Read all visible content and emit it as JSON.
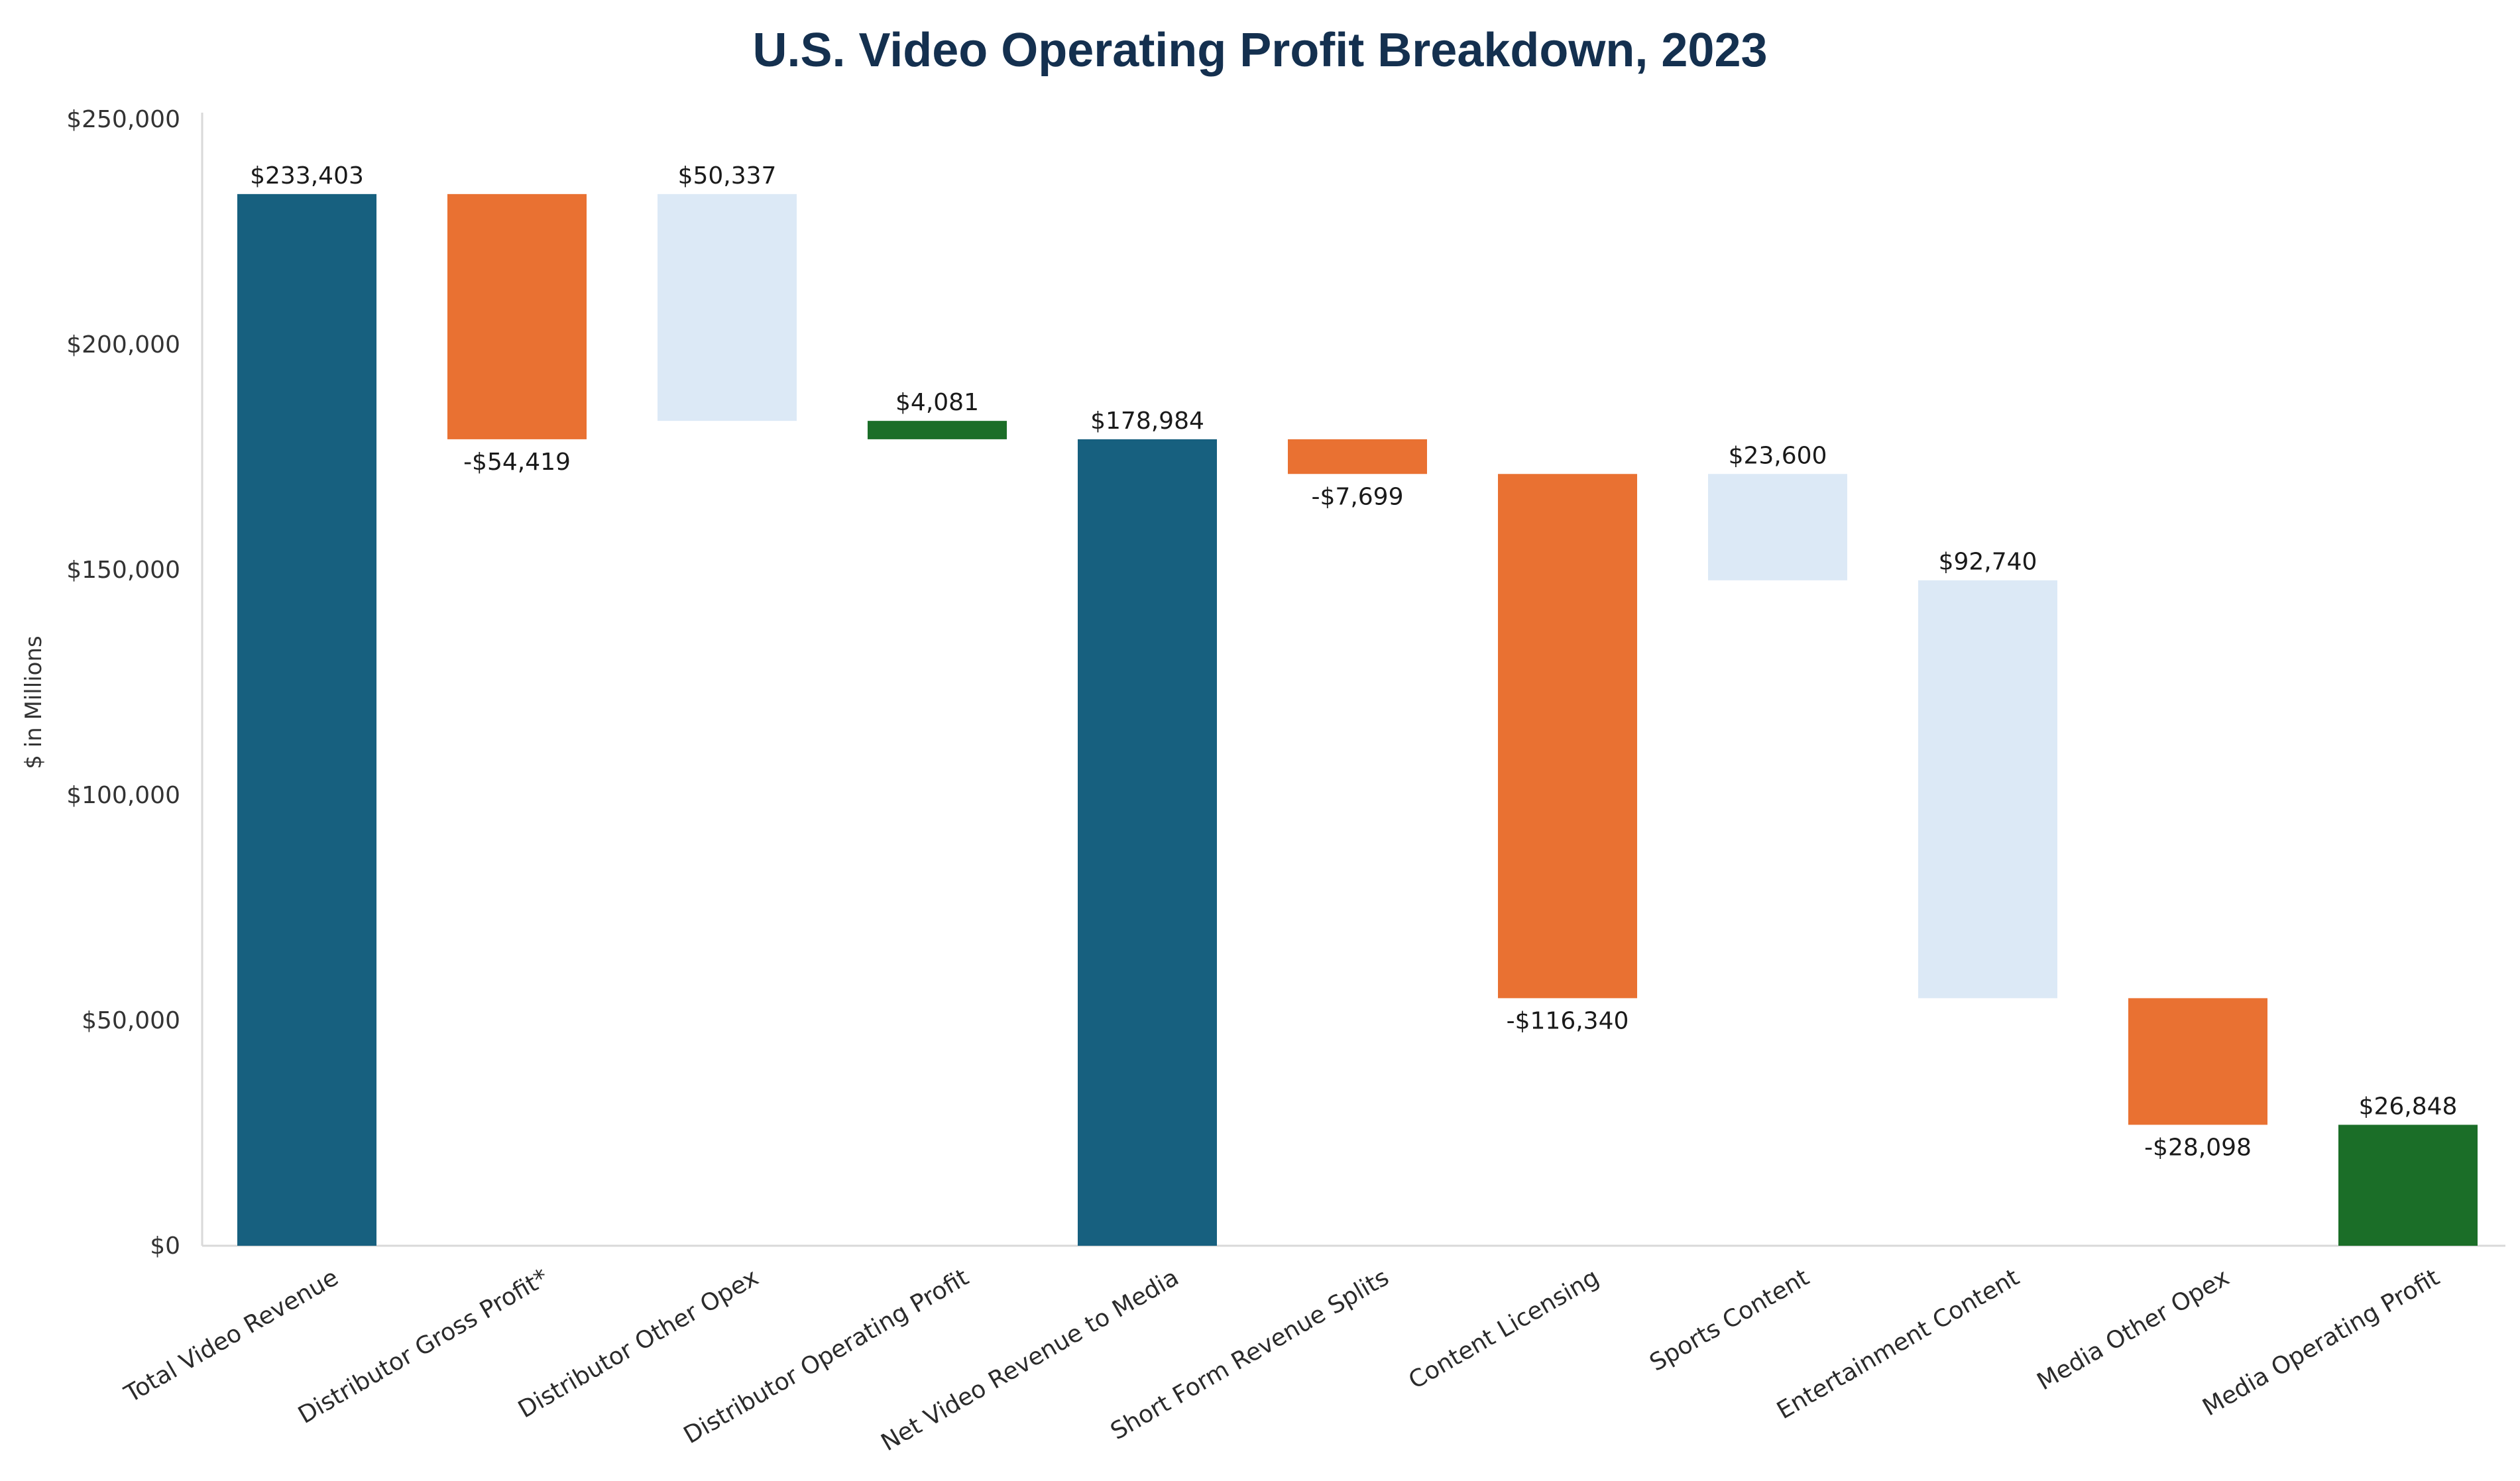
{
  "chart_data": {
    "type": "bar",
    "subtype": "waterfall",
    "title": "U.S.  Video Operating Profit Breakdown, 2023",
    "ylabel": "$ in Millions",
    "ylim": [
      0,
      250000
    ],
    "yticks": [
      0,
      50000,
      100000,
      150000,
      200000,
      250000
    ],
    "ytick_labels": [
      "$0",
      "$50,000",
      "$100,000",
      "$150,000",
      "$200,000",
      "$250,000"
    ],
    "grid": false,
    "legend": "none",
    "bars": [
      {
        "category": "Total Video Revenue",
        "kind": "total",
        "start": 0,
        "end": 233403,
        "label": "$233,403",
        "label_pos": "top",
        "color": "#17607f"
      },
      {
        "category": "Distributor Gross Profit*",
        "kind": "decrease",
        "start": 233403,
        "end": 178984,
        "label": "-$54,419",
        "label_pos": "bottom",
        "color": "#e97132"
      },
      {
        "category": "Distributor Other Opex",
        "kind": "component",
        "start": 233403,
        "end": 183066,
        "label": "$50,337",
        "label_pos": "top",
        "color": "#dce9f6"
      },
      {
        "category": "Distributor Operating Profit",
        "kind": "result",
        "start": 183066,
        "end": 178984,
        "label": "$4,081",
        "label_pos": "top",
        "color": "#1b6e28"
      },
      {
        "category": "Net Video Revenue to Media",
        "kind": "total",
        "start": 0,
        "end": 178984,
        "label": "$178,984",
        "label_pos": "top",
        "color": "#17607f"
      },
      {
        "category": "Short Form Revenue Splits",
        "kind": "decrease",
        "start": 178984,
        "end": 171285,
        "label": "-$7,699",
        "label_pos": "bottom",
        "color": "#e97132"
      },
      {
        "category": "Content Licensing",
        "kind": "decrease",
        "start": 171285,
        "end": 54945,
        "label": "-$116,340",
        "label_pos": "bottom",
        "color": "#e97132"
      },
      {
        "category": "Sports Content",
        "kind": "component",
        "start": 171285,
        "end": 147685,
        "label": "$23,600",
        "label_pos": "top",
        "color": "#dce9f6"
      },
      {
        "category": "Entertainment Content",
        "kind": "component",
        "start": 147685,
        "end": 54945,
        "label": "$92,740",
        "label_pos": "top",
        "color": "#dce9f6"
      },
      {
        "category": "Media Other Opex",
        "kind": "decrease",
        "start": 54945,
        "end": 26848,
        "label": "-$28,098",
        "label_pos": "bottom",
        "color": "#e97132"
      },
      {
        "category": "Media Operating Profit",
        "kind": "result",
        "start": 0,
        "end": 26848,
        "label": "$26,848",
        "label_pos": "top",
        "color": "#1b6e28"
      }
    ]
  }
}
